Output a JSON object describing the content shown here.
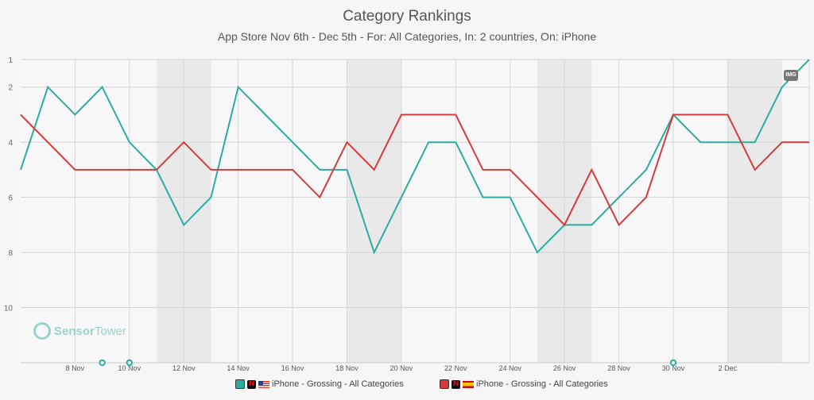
{
  "chart_data": {
    "type": "line",
    "title": "Category Rankings",
    "subtitle": "App Store Nov 6th - Dec 5th - For: All Categories, In: 2 countries, On: iPhone",
    "y_axis": {
      "reversed": true,
      "range": [
        1,
        12
      ],
      "ticks": [
        1,
        2,
        4,
        6,
        8,
        10
      ]
    },
    "x_axis": {
      "range": [
        "6 Nov",
        "5 Dec"
      ],
      "tick_labels": [
        "8 Nov",
        "10 Nov",
        "12 Nov",
        "14 Nov",
        "16 Nov",
        "18 Nov",
        "20 Nov",
        "22 Nov",
        "24 Nov",
        "26 Nov",
        "28 Nov",
        "30 Nov",
        "2 Dec"
      ]
    },
    "shaded_weekends": [
      [
        "11 Nov",
        "13 Nov"
      ],
      [
        "18 Nov",
        "20 Nov"
      ],
      [
        "25 Nov",
        "27 Nov"
      ],
      [
        "2 Dec",
        "4 Dec"
      ]
    ],
    "x": [
      "6 Nov",
      "7 Nov",
      "8 Nov",
      "9 Nov",
      "10 Nov",
      "11 Nov",
      "12 Nov",
      "13 Nov",
      "14 Nov",
      "15 Nov",
      "16 Nov",
      "17 Nov",
      "18 Nov",
      "19 Nov",
      "20 Nov",
      "21 Nov",
      "22 Nov",
      "23 Nov",
      "24 Nov",
      "25 Nov",
      "26 Nov",
      "27 Nov",
      "28 Nov",
      "29 Nov",
      "30 Nov",
      "1 Dec",
      "2 Dec",
      "3 Dec",
      "4 Dec",
      "5 Dec"
    ],
    "series": [
      {
        "name": "iPhone - Grossing - All Categories",
        "country": "US",
        "color": "#2bada0",
        "values": [
          5,
          2,
          3,
          2,
          4,
          5,
          7,
          6,
          2,
          3,
          4,
          5,
          5,
          8,
          6,
          4,
          4,
          6,
          6,
          8,
          7,
          7,
          6,
          5,
          3,
          4,
          4,
          4,
          2,
          1
        ]
      },
      {
        "name": "iPhone - Grossing - All Categories",
        "country": "ES",
        "color": "#d63b3b",
        "values": [
          3,
          4,
          5,
          5,
          5,
          5,
          4,
          5,
          5,
          5,
          5,
          6,
          4,
          5,
          3,
          3,
          3,
          5,
          5,
          6,
          7,
          5,
          7,
          6,
          3,
          3,
          3,
          5,
          4,
          4
        ]
      }
    ],
    "event_markers": [
      "9 Nov",
      "10 Nov",
      "30 Nov"
    ],
    "grid": true,
    "legend": "bottom-center"
  },
  "watermark": {
    "brand_a": "Sensor",
    "brand_b": "Tower"
  },
  "badge": {
    "label": "IMG"
  },
  "legend_items": [
    {
      "label": "iPhone - Grossing - All Categories",
      "color": "#2bada0"
    },
    {
      "label": "iPhone - Grossing - All Categories",
      "color": "#d63b3b"
    }
  ]
}
